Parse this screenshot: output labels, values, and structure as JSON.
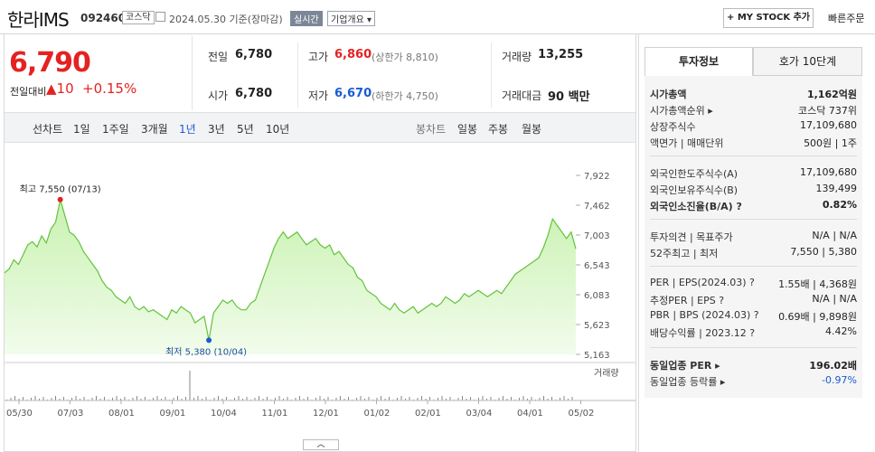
{
  "header": {
    "name": "한라IMS",
    "code": "092460",
    "market": "코스닥",
    "date_text": "2024.05.30 기준(장마감)",
    "realtime": "실시간",
    "company_info": "기업개요 ▾",
    "mystock": "+ MY STOCK 추가",
    "quick_order": "빠른주문"
  },
  "price": {
    "current": "6,790",
    "change_label": "전일대비",
    "change_value": "▲10",
    "change_pct": "+0.15%"
  },
  "summary": {
    "prev_label": "전일",
    "prev": "6,780",
    "high_label": "고가",
    "high": "6,860",
    "upper_limit": "(상한가 8,810)",
    "volume_label": "거래량",
    "volume": "13,255",
    "open_label": "시가",
    "open": "6,780",
    "low_label": "저가",
    "low": "6,670",
    "lower_limit": "(하한가 4,750)",
    "amount_label": "거래대금",
    "amount": "90 백만"
  },
  "tabs": {
    "line_chart": "선차트",
    "periods": [
      "1일",
      "1주일",
      "3개월",
      "1년",
      "3년",
      "5년",
      "10년"
    ],
    "active": "1년",
    "candle_chart": "봉차트",
    "candles": [
      "일봉",
      "주봉",
      "월봉"
    ]
  },
  "chart_data": {
    "type": "area",
    "y_ticks": [
      "7,922",
      "7,462",
      "7,003",
      "6,543",
      "6,083",
      "5,623",
      "5,163"
    ],
    "x_ticks": [
      "05/30",
      "07/03",
      "08/01",
      "09/01",
      "10/04",
      "11/01",
      "12/01",
      "01/02",
      "02/01",
      "03/04",
      "04/01",
      "05/02"
    ],
    "high_label": "최고 7,550 (07/13)",
    "low_label": "최저 5,380 (10/04)",
    "volume_legend": "거래량",
    "ylim": [
      5163,
      7922
    ],
    "values": [
      6420,
      6480,
      6620,
      6550,
      6700,
      6850,
      6900,
      6820,
      6990,
      6880,
      7100,
      7200,
      7550,
      7300,
      7050,
      7000,
      6900,
      6750,
      6650,
      6550,
      6450,
      6300,
      6200,
      6150,
      6050,
      6000,
      5950,
      6050,
      5900,
      5850,
      5900,
      5820,
      5850,
      5800,
      5750,
      5700,
      5850,
      5800,
      5900,
      5850,
      5800,
      5650,
      5700,
      5750,
      5380,
      5800,
      5900,
      6000,
      5950,
      6000,
      5900,
      5850,
      5850,
      5950,
      6000,
      6200,
      6400,
      6600,
      6800,
      6950,
      7050,
      6950,
      7000,
      7050,
      6950,
      6850,
      6900,
      6950,
      6850,
      6800,
      6850,
      6700,
      6750,
      6650,
      6550,
      6500,
      6350,
      6300,
      6150,
      6100,
      6050,
      5950,
      5900,
      5850,
      5950,
      5850,
      5800,
      5850,
      5900,
      5800,
      5850,
      5900,
      5950,
      5900,
      5950,
      6050,
      6000,
      5950,
      6000,
      6100,
      6050,
      6100,
      6150,
      6100,
      6050,
      6100,
      6150,
      6100,
      6200,
      6300,
      6400,
      6450,
      6500,
      6550,
      6600,
      6650,
      6800,
      7000,
      7250,
      7150,
      7050,
      6950,
      7050,
      6790
    ]
  },
  "info": {
    "tab_invest": "투자정보",
    "tab_quote": "호가 10단계",
    "rows": [
      {
        "k": "시가총액",
        "v": "1,162억원",
        "bold": true
      },
      {
        "k": "시가총액순위 ▸",
        "v": "코스닥 737위"
      },
      {
        "k": "상장주식수",
        "v": "17,109,680"
      },
      {
        "k": "액면가 | 매매단위",
        "v": "500원 | 1주"
      },
      {
        "k": "외국인한도주식수(A)",
        "v": "17,109,680"
      },
      {
        "k": "외국인보유주식수(B)",
        "v": "139,499"
      },
      {
        "k": "외국인소진율(B/A) ?",
        "v": "0.82%",
        "bold": true
      },
      {
        "k": "투자의견 | 목표주가",
        "v": "N/A | N/A"
      },
      {
        "k": "52주최고 | 최저",
        "v": "7,550 | 5,380"
      },
      {
        "k": "PER | EPS(2024.03) ?",
        "v": "1.55배 | 4,368원"
      },
      {
        "k": "추정PER | EPS ?",
        "v": "N/A | N/A"
      },
      {
        "k": "PBR | BPS (2024.03) ?",
        "v": "0.69배 | 9,898원"
      },
      {
        "k": "배당수익률 | 2023.12 ?",
        "v": "4.42%"
      },
      {
        "k": "동일업종 PER ▸",
        "v": "196.02배",
        "bold": true
      },
      {
        "k": "동일업종 등락률 ▸",
        "v": "-0.97%",
        "blue": true
      }
    ]
  }
}
